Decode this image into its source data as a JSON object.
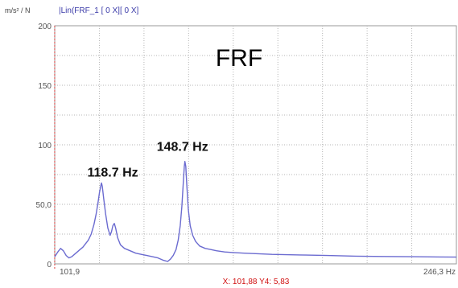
{
  "chart_data": {
    "type": "line",
    "title": "FRF",
    "ylabel": "m/s² / N",
    "legend_entry": "|Lin(FRF_1 [ 0 X][ 0 X]",
    "legend_placement": "top-left",
    "grid": true,
    "xlim": [
      101.9,
      246.3
    ],
    "ylim": [
      0,
      200
    ],
    "x_range_labels": {
      "start": "101,9",
      "end": "246,3 Hz"
    },
    "y_tick_labels": [
      {
        "value": 200,
        "label": "200"
      },
      {
        "value": 150,
        "label": "150"
      },
      {
        "value": 100,
        "label": "100"
      },
      {
        "value": 50,
        "label": "50,0"
      },
      {
        "value": 0,
        "label": "0"
      }
    ],
    "annotations": [
      {
        "x": 118.7,
        "y": 68,
        "text": "118.7 Hz"
      },
      {
        "x": 148.7,
        "y": 86,
        "text": "148.7 Hz"
      }
    ],
    "cursor": {
      "x": 101.88,
      "y": 5.83,
      "readout": "X: 101,88  Y4: 5,83"
    },
    "series": [
      {
        "color": "#6b6bd0",
        "x": [
          101.9,
          103.0,
          104.0,
          105.0,
          106.0,
          107.0,
          108.0,
          109.0,
          110.0,
          111.0,
          112.0,
          113.0,
          114.0,
          115.0,
          116.0,
          116.8,
          117.5,
          118.0,
          118.5,
          118.7,
          119.0,
          119.5,
          120.2,
          121.0,
          121.8,
          122.3,
          122.8,
          123.3,
          123.8,
          124.5,
          125.5,
          127.0,
          129.0,
          131.0,
          133.0,
          135.0,
          137.0,
          139.0,
          141.0,
          142.5,
          143.5,
          144.5,
          145.5,
          146.3,
          147.0,
          147.6,
          148.1,
          148.5,
          148.7,
          149.0,
          149.4,
          149.9,
          150.6,
          151.5,
          152.5,
          154.0,
          156.0,
          158.0,
          160.0,
          163.0,
          166.0,
          170.0,
          175.0,
          180.0,
          190.0,
          200.0,
          210.0,
          220.0,
          230.0,
          240.0,
          246.3
        ],
        "y": [
          6,
          10,
          13,
          11,
          7,
          5,
          6,
          8,
          10,
          12,
          14,
          17,
          20,
          25,
          33,
          42,
          52,
          60,
          66,
          68,
          65,
          55,
          42,
          30,
          24,
          27,
          32,
          34,
          30,
          22,
          16,
          13,
          11,
          9,
          8,
          7,
          6,
          5,
          3,
          2,
          4,
          7,
          12,
          20,
          32,
          48,
          68,
          82,
          86,
          82,
          66,
          46,
          32,
          24,
          19,
          15,
          13,
          12,
          11,
          10,
          9.5,
          9,
          8.5,
          8,
          7.5,
          7,
          6.5,
          6.2,
          6,
          5.8,
          5.7
        ]
      }
    ]
  }
}
